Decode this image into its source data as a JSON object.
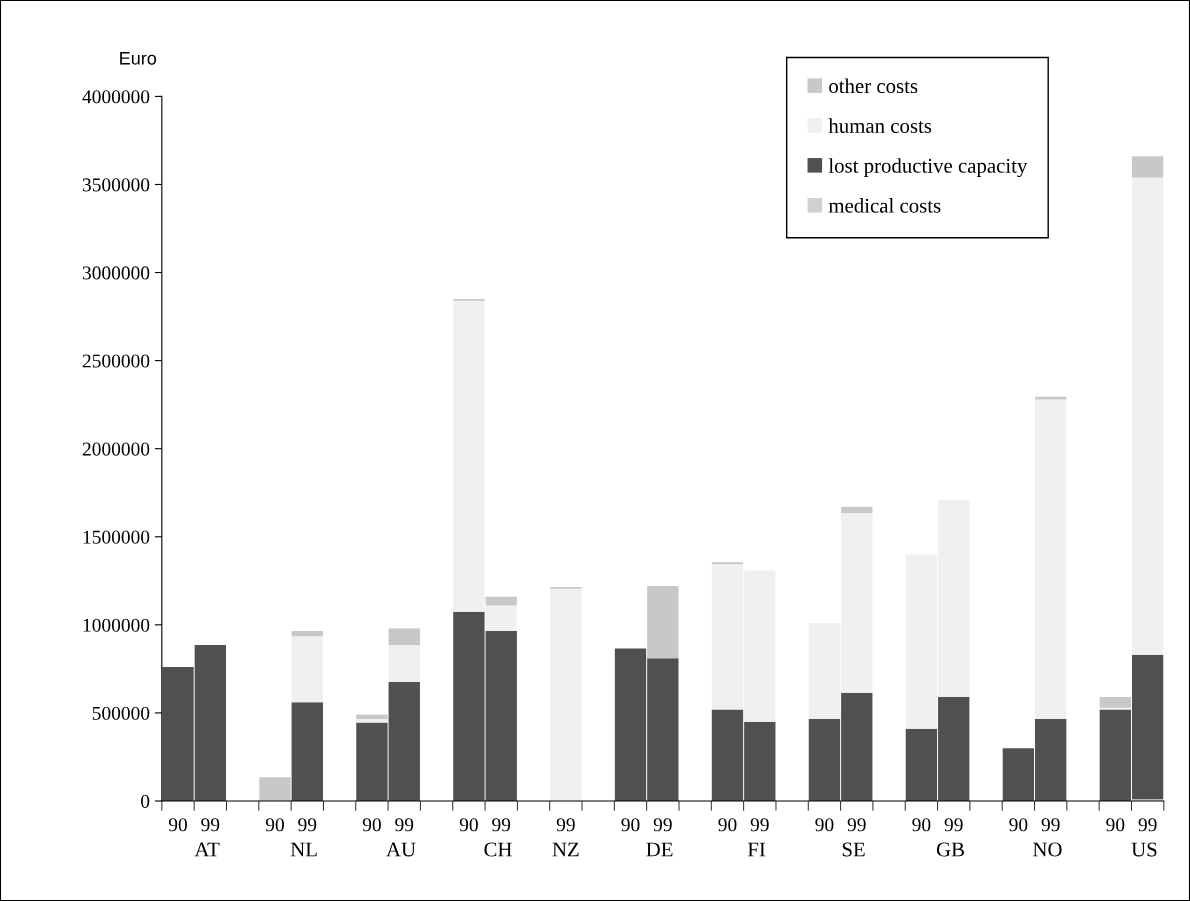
{
  "chart_data": {
    "type": "bar",
    "stacked": true,
    "ylabel": "Euro",
    "legend": "top right",
    "grid": false,
    "categories": [
      "90",
      "99",
      null,
      "90",
      "99",
      null,
      "90",
      "99",
      null,
      "90",
      "99",
      null,
      "99",
      null,
      "90",
      "99",
      null,
      "90",
      "99",
      null,
      "90",
      "99",
      null,
      "90",
      "99",
      null,
      "90",
      "99",
      null,
      "90",
      "99"
    ],
    "annotations": [
      "AT",
      "NL",
      "AU",
      "CH",
      "NZ",
      "DE",
      "FI",
      "SE",
      "GB",
      "NO",
      "US"
    ],
    "ylim": [
      0,
      4000000
    ],
    "yticks": [
      0,
      500000,
      1000000,
      1500000,
      2000000,
      2500000,
      3000000,
      3500000,
      4000000
    ],
    "series": [
      {
        "name": "medical costs",
        "color": "#d0d0d0",
        "values": [
          null,
          null,
          null,
          null,
          null,
          null,
          null,
          null,
          null,
          null,
          null,
          null,
          null,
          null,
          null,
          null,
          null,
          null,
          null,
          null,
          null,
          null,
          null,
          null,
          null,
          null,
          null,
          null,
          null,
          null,
          10000
        ]
      },
      {
        "name": "lost productive capacity",
        "color": "#505050",
        "values": [
          760000,
          885000,
          null,
          null,
          560000,
          null,
          445000,
          675000,
          null,
          1075000,
          965000,
          null,
          null,
          null,
          865000,
          810000,
          null,
          520000,
          450000,
          null,
          465000,
          615000,
          null,
          410000,
          590000,
          null,
          300000,
          465000,
          null,
          520000,
          820000
        ]
      },
      {
        "name": "human costs",
        "color": "#f0f0f0",
        "values": [
          null,
          null,
          null,
          null,
          375000,
          null,
          20000,
          210000,
          null,
          1765000,
          145000,
          null,
          1205000,
          null,
          null,
          null,
          null,
          825000,
          860000,
          null,
          545000,
          1020000,
          null,
          990000,
          1120000,
          null,
          null,
          1815000,
          null,
          10000,
          2710000
        ]
      },
      {
        "name": "other costs",
        "color": "#c8c8c8",
        "values": [
          null,
          null,
          null,
          135000,
          30000,
          null,
          25000,
          95000,
          null,
          10000,
          50000,
          null,
          10000,
          null,
          null,
          410000,
          null,
          10000,
          null,
          null,
          null,
          35000,
          null,
          null,
          null,
          null,
          null,
          15000,
          null,
          60000,
          120000
        ]
      }
    ]
  }
}
